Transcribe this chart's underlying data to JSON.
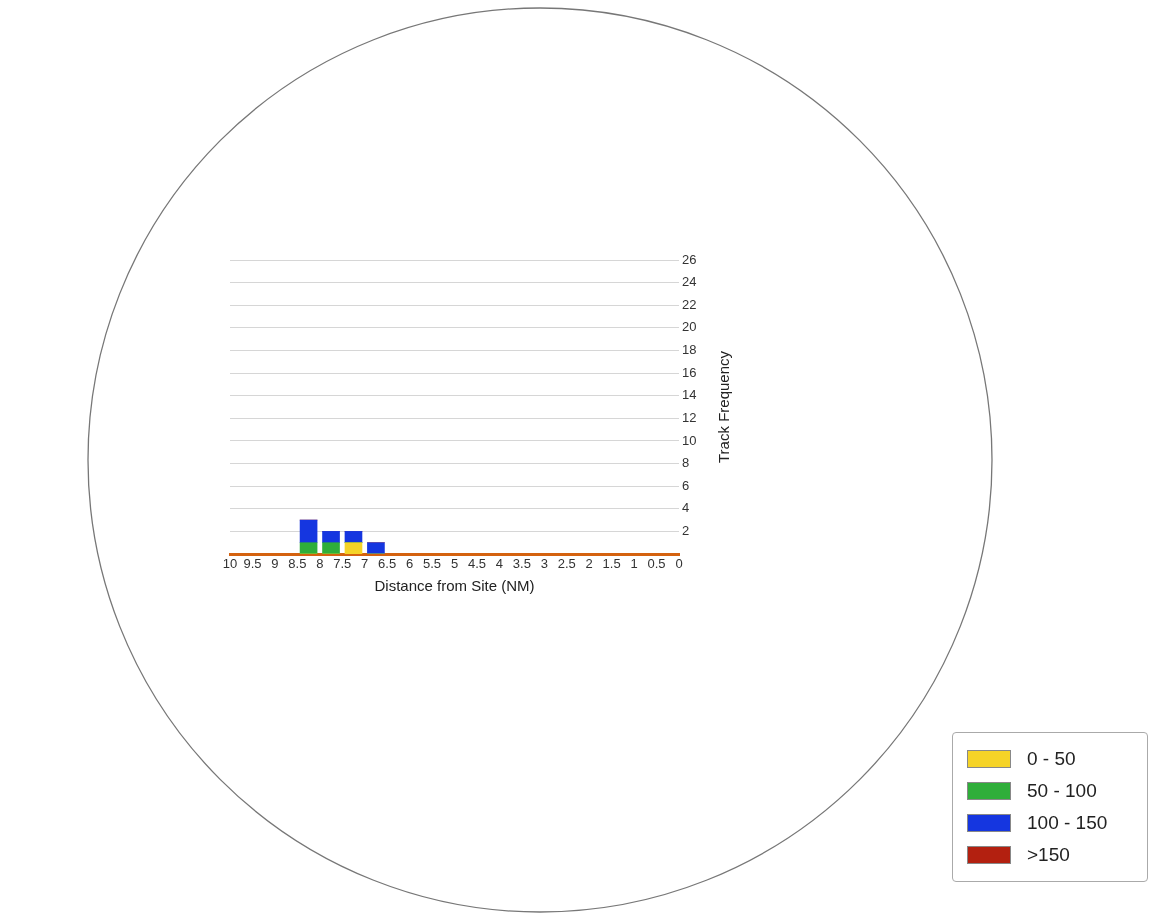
{
  "chart_data": {
    "type": "bar",
    "stacked": true,
    "xlabel": "Distance from Site (NM)",
    "ylabel": "Track Frequency",
    "x": [
      6.75,
      7.25,
      7.75,
      8.25
    ],
    "series": [
      {
        "name": "0 - 50",
        "color": "#f5d327",
        "values": [
          0,
          1,
          0,
          0
        ]
      },
      {
        "name": "50 - 100",
        "color": "#2fae3a",
        "values": [
          0,
          0,
          1,
          1
        ]
      },
      {
        "name": "100 - 150",
        "color": "#1536e0",
        "values": [
          1,
          1,
          1,
          2
        ]
      },
      {
        "name": ">150",
        "color": "#b32010",
        "values": [
          0,
          0,
          0,
          0
        ]
      }
    ],
    "xlim": [
      10,
      0
    ],
    "xticks": [
      0,
      0.5,
      1,
      1.5,
      2,
      2.5,
      3,
      3.5,
      4,
      4.5,
      5,
      5.5,
      6,
      6.5,
      7,
      7.5,
      8,
      8.5,
      9,
      9.5,
      10
    ],
    "ylim": [
      0,
      26
    ],
    "yticks": [
      2,
      4,
      6,
      8,
      10,
      12,
      14,
      16,
      18,
      20,
      22,
      24,
      26
    ],
    "grid": "y",
    "legend": "bottom right"
  }
}
